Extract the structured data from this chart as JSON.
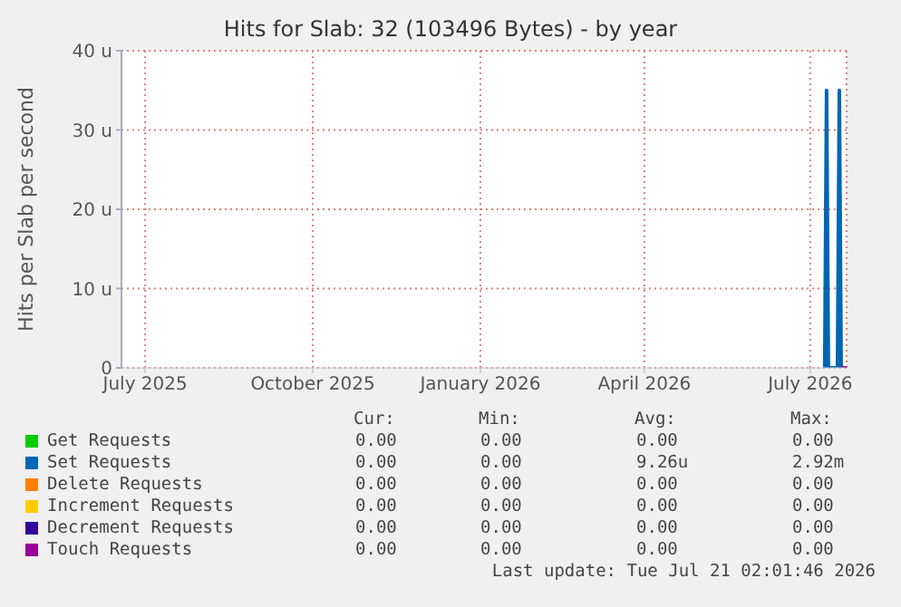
{
  "chart_data": {
    "type": "line",
    "title": "Hits for Slab: 32 (103496 Bytes) - by year",
    "ylabel": "Hits per Slab per second",
    "x": [
      "2026-07-09",
      "2026-07-10",
      "2026-07-11",
      "2026-07-16",
      "2026-07-17",
      "2026-07-18"
    ],
    "series": [
      {
        "name": "Get Requests",
        "color": "#00cc00",
        "values": [
          null,
          null,
          null,
          null,
          null,
          null
        ]
      },
      {
        "name": "Set Requests",
        "color": "#0066b3",
        "values": [
          0,
          35,
          0,
          0,
          35,
          0
        ]
      },
      {
        "name": "Delete Requests",
        "color": "#ff8000",
        "values": [
          null,
          null,
          null,
          null,
          null,
          null
        ]
      },
      {
        "name": "Increment Requests",
        "color": "#ffcc00",
        "values": [
          null,
          null,
          null,
          null,
          null,
          null
        ]
      },
      {
        "name": "Decrement Requests",
        "color": "#330099",
        "values": [
          null,
          null,
          null,
          null,
          null,
          null
        ]
      },
      {
        "name": "Touch Requests",
        "color": "#990099",
        "x": [
          "2026-07-18",
          "2026-07-21"
        ],
        "values": [
          0,
          0
        ]
      }
    ],
    "xlim": [
      "2025-06-18",
      "2026-07-21"
    ],
    "xticks": [
      {
        "value": "2025-07-01",
        "label": "July 2025"
      },
      {
        "value": "2025-10-01",
        "label": "October 2025"
      },
      {
        "value": "2026-01-01",
        "label": "January 2026"
      },
      {
        "value": "2026-04-01",
        "label": "April 2026"
      },
      {
        "value": "2026-07-01",
        "label": "July 2026"
      }
    ],
    "ylim": [
      0,
      40
    ],
    "yticks": [
      0,
      {
        "value": 10,
        "label": "10 u"
      },
      {
        "value": 20,
        "label": "20 u"
      },
      {
        "value": 30,
        "label": "30 u"
      },
      {
        "value": 40,
        "label": "40 u"
      }
    ],
    "grid": true,
    "legend": "bottom",
    "marker": "none",
    "line_style": "solid",
    "annotations": [
      "Cur:",
      "Min:",
      "Avg:",
      "Max:",
      "0.00",
      "0.00",
      "0.00",
      "0.00",
      "0.00",
      "0.00",
      "9.26u",
      "2.92m",
      "0.00",
      "0.00",
      "0.00",
      "0.00",
      "0.00",
      "0.00",
      "0.00",
      "0.00",
      "0.00",
      "0.00",
      "0.00",
      "0.00",
      "0.00",
      "0.00",
      "0.00",
      "0.00",
      "Last update: Tue Jul 21 02:01:46 2026"
    ]
  }
}
